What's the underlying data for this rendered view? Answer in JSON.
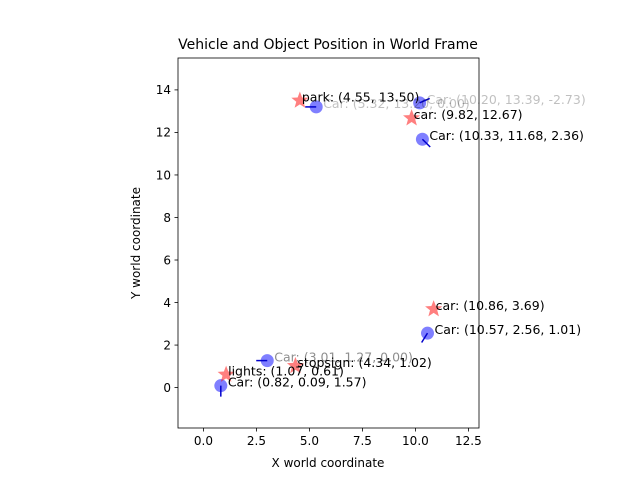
{
  "chart_data": {
    "type": "scatter",
    "title": "Vehicle and Object Position in World Frame",
    "xlabel": "X world coordinate",
    "ylabel": "Y world coordinate",
    "xlim": [
      -1.2,
      13.0
    ],
    "ylim": [
      -1.9,
      15.5
    ],
    "x_ticks": [
      0.0,
      2.5,
      5.0,
      7.5,
      10.0,
      12.5
    ],
    "x_tick_labels": [
      "0.0",
      "2.5",
      "5.0",
      "7.5",
      "10.0",
      "12.5"
    ],
    "y_ticks": [
      0,
      2,
      4,
      6,
      8,
      10,
      12,
      14
    ],
    "y_tick_labels": [
      "0",
      "2",
      "4",
      "6",
      "8",
      "10",
      "12",
      "14"
    ],
    "grid": false,
    "colors": {
      "car_marker": "#0000ff",
      "heading_arrow": "#0000cc",
      "object_marker": "#ff0000",
      "axis": "#000000",
      "faded_label": "#999999"
    },
    "series": [
      {
        "marker": "circle",
        "points": [
          {
            "x": 0.82,
            "y": 0.09,
            "heading": 1.57,
            "label": "Car: (0.82, 0.09, 1.57)",
            "label_opacity": 1.0
          },
          {
            "x": 3.01,
            "y": 1.27,
            "heading": 0.0,
            "label": "Car: (3.01, 1.27, 0.00)",
            "label_opacity": 0.45
          },
          {
            "x": 5.32,
            "y": 13.2,
            "heading": 0.0,
            "label": "Car: (5.32, 13.20, 0.00)",
            "label_opacity": 0.25
          },
          {
            "x": 10.2,
            "y": 13.39,
            "heading": -2.73,
            "label": "Car: (10.20, 13.39, -2.73)",
            "label_opacity": 0.25
          },
          {
            "x": 10.33,
            "y": 11.68,
            "heading": 2.36,
            "label": "Car: (10.33, 11.68, 2.36)",
            "label_opacity": 1.0
          },
          {
            "x": 10.57,
            "y": 2.56,
            "heading": 1.01,
            "label": "Car: (10.57, 2.56, 1.01)",
            "label_opacity": 1.0
          }
        ]
      },
      {
        "marker": "star",
        "points": [
          {
            "x": 1.07,
            "y": 0.61,
            "label": "lights: (1.07, 0.61)"
          },
          {
            "x": 4.34,
            "y": 1.02,
            "label": "stopsign: (4.34, 1.02)"
          },
          {
            "x": 4.55,
            "y": 13.5,
            "label": "park: (4.55, 13.50)"
          },
          {
            "x": 9.82,
            "y": 12.67,
            "label": "car: (9.82, 12.67)"
          },
          {
            "x": 10.86,
            "y": 3.69,
            "label": "car: (10.86, 3.69)"
          }
        ]
      }
    ]
  }
}
